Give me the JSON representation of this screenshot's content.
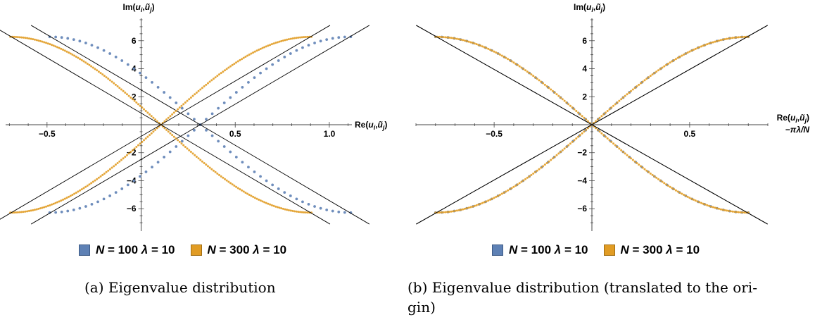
{
  "chart_data": [
    {
      "type": "scatter",
      "xlabel": "Re(u_i, ũ_j)",
      "ylabel": "Im(u_i, ũ_j)",
      "xlim": [
        -0.72,
        1.12
      ],
      "ylim": [
        -7.6,
        7.6
      ],
      "xticks": [
        -0.5,
        0.5,
        1.0
      ],
      "xtick_labels": [
        "-0.5",
        "0.5",
        "1.0"
      ],
      "yticks": [
        -6,
        -4,
        -2,
        2,
        4,
        6
      ],
      "ytick_labels": [
        "-6",
        "-4",
        "-2",
        "2",
        "4",
        "6"
      ],
      "legend_position": "bottom",
      "series": [
        {
          "name": "N = 100 λ = 10",
          "color": "#5e81b5",
          "center_x": 0.314,
          "x_half_width": 0.8,
          "y_max": 6.28,
          "lines_slope": 7.9,
          "lines_y_limit": 7.1
        },
        {
          "name": "N = 300 λ = 10",
          "color": "#e19c24",
          "center_x": 0.105,
          "x_half_width": 0.8,
          "y_max": 6.28,
          "lines_slope": 7.9,
          "lines_y_limit": 7.1
        }
      ]
    },
    {
      "type": "scatter",
      "xlabel": "Re(u_i, ũ_j) −πλ/N",
      "ylabel": "Im(u_i, ũ_j)",
      "xlim": [
        -0.9,
        0.9
      ],
      "ylim": [
        -7.6,
        7.6
      ],
      "xticks": [
        -0.5,
        0.5
      ],
      "xtick_labels": [
        "-0.5",
        "0.5"
      ],
      "yticks": [
        -6,
        -4,
        -2,
        2,
        4,
        6
      ],
      "ytick_labels": [
        "-6",
        "-4",
        "-2",
        "2",
        "4",
        "6"
      ],
      "legend_position": "bottom",
      "series": [
        {
          "name": "N = 100 λ = 10",
          "color": "#5e81b5",
          "center_x": 0.0,
          "x_half_width": 0.8,
          "y_max": 6.28,
          "lines_slope": 7.9,
          "lines_y_limit": 7.1
        },
        {
          "name": "N = 300 λ = 10",
          "color": "#e19c24",
          "center_x": 0.0,
          "x_half_width": 0.8,
          "y_max": 6.28,
          "lines_slope": 7.9,
          "lines_y_limit": 7.1
        }
      ]
    }
  ],
  "legend": {
    "item1": {
      "N": "N",
      "eq1": " = 100 ",
      "lambda": "λ",
      "eq2": " = 10"
    },
    "item2": {
      "N": "N",
      "eq1": " = 300 ",
      "lambda": "λ",
      "eq2": " = 10"
    }
  },
  "captions": {
    "a": "(a) Eigenvalue distribution",
    "b_line1": "(b) Eigenvalue distribution (translated to the ori-",
    "b_line2": "gin)"
  },
  "axis_text": {
    "im_prefix": "Im(",
    "re_prefix": "Re(",
    "u_i": "u",
    "sub_i": "i",
    "comma": ",",
    "u_tilde": "ũ",
    "sub_j": "j",
    "close": ")",
    "shift": "−πλ/N"
  }
}
